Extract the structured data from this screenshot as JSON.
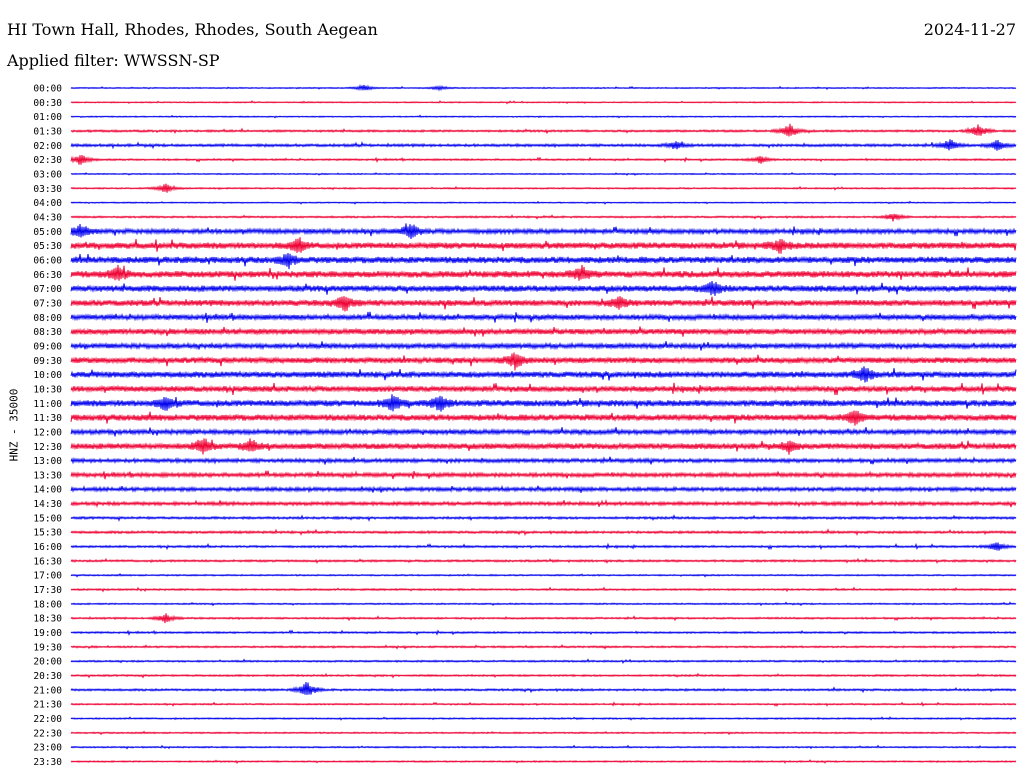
{
  "header": {
    "station": "HI Town Hall, Rhodes, Rhodes, South Aegean",
    "date": "2024-11-27",
    "filter": "Applied filter: WWSSN-SP"
  },
  "chart_data": {
    "type": "line",
    "title": "HI Town Hall, Rhodes, Rhodes, South Aegean",
    "ylabel": "HNZ - 35000",
    "colors": {
      "even": "#0000ee",
      "odd": "#ee0033"
    },
    "rows": [
      "00:00",
      "00:30",
      "01:00",
      "01:30",
      "02:00",
      "02:30",
      "03:00",
      "03:30",
      "04:00",
      "04:30",
      "05:00",
      "05:30",
      "06:00",
      "06:30",
      "07:00",
      "07:30",
      "08:00",
      "08:30",
      "09:00",
      "09:30",
      "10:00",
      "10:30",
      "11:00",
      "11:30",
      "12:00",
      "12:30",
      "13:00",
      "13:30",
      "14:00",
      "14:30",
      "15:00",
      "15:30",
      "16:00",
      "16:30",
      "17:00",
      "17:30",
      "18:00",
      "18:30",
      "19:00",
      "19:30",
      "20:00",
      "20:30",
      "21:00",
      "21:30",
      "22:00",
      "22:30",
      "23:00",
      "23:30"
    ],
    "noise": [
      0.4,
      0.4,
      0.4,
      0.7,
      0.9,
      0.6,
      0.4,
      0.5,
      0.4,
      0.6,
      1.6,
      2.2,
      2.3,
      2.3,
      2.2,
      2.1,
      1.8,
      1.9,
      1.7,
      2.0,
      2.1,
      2.0,
      2.2,
      2.2,
      1.6,
      2.0,
      1.3,
      1.4,
      1.3,
      1.2,
      0.8,
      0.8,
      0.7,
      0.7,
      0.5,
      0.6,
      0.5,
      0.6,
      0.6,
      0.6,
      0.6,
      0.6,
      0.7,
      0.5,
      0.5,
      0.5,
      0.5,
      0.5
    ],
    "events": [
      {
        "row": 0,
        "t": 0.31,
        "amp": 3
      },
      {
        "row": 0,
        "t": 0.39,
        "amp": 2
      },
      {
        "row": 3,
        "t": 0.76,
        "amp": 8
      },
      {
        "row": 3,
        "t": 0.96,
        "amp": 7
      },
      {
        "row": 4,
        "t": 0.64,
        "amp": 4
      },
      {
        "row": 4,
        "t": 0.93,
        "amp": 6
      },
      {
        "row": 4,
        "t": 0.98,
        "amp": 6
      },
      {
        "row": 5,
        "t": 0.01,
        "amp": 6
      },
      {
        "row": 5,
        "t": 0.73,
        "amp": 4
      },
      {
        "row": 7,
        "t": 0.1,
        "amp": 5
      },
      {
        "row": 9,
        "t": 0.87,
        "amp": 4
      },
      {
        "row": 10,
        "t": 0.01,
        "amp": 8
      },
      {
        "row": 10,
        "t": 0.36,
        "amp": 9
      },
      {
        "row": 11,
        "t": 0.24,
        "amp": 7
      },
      {
        "row": 11,
        "t": 0.75,
        "amp": 7
      },
      {
        "row": 12,
        "t": 0.23,
        "amp": 7
      },
      {
        "row": 13,
        "t": 0.05,
        "amp": 7
      },
      {
        "row": 13,
        "t": 0.54,
        "amp": 7
      },
      {
        "row": 14,
        "t": 0.68,
        "amp": 7
      },
      {
        "row": 15,
        "t": 0.29,
        "amp": 8
      },
      {
        "row": 15,
        "t": 0.58,
        "amp": 6
      },
      {
        "row": 19,
        "t": 0.47,
        "amp": 8
      },
      {
        "row": 20,
        "t": 0.84,
        "amp": 8
      },
      {
        "row": 22,
        "t": 0.1,
        "amp": 7
      },
      {
        "row": 22,
        "t": 0.34,
        "amp": 8
      },
      {
        "row": 22,
        "t": 0.39,
        "amp": 8
      },
      {
        "row": 23,
        "t": 0.83,
        "amp": 8
      },
      {
        "row": 25,
        "t": 0.14,
        "amp": 8
      },
      {
        "row": 25,
        "t": 0.19,
        "amp": 7
      },
      {
        "row": 25,
        "t": 0.76,
        "amp": 5
      },
      {
        "row": 32,
        "t": 0.98,
        "amp": 5
      },
      {
        "row": 37,
        "t": 0.1,
        "amp": 5
      },
      {
        "row": 42,
        "t": 0.25,
        "amp": 9
      }
    ]
  }
}
